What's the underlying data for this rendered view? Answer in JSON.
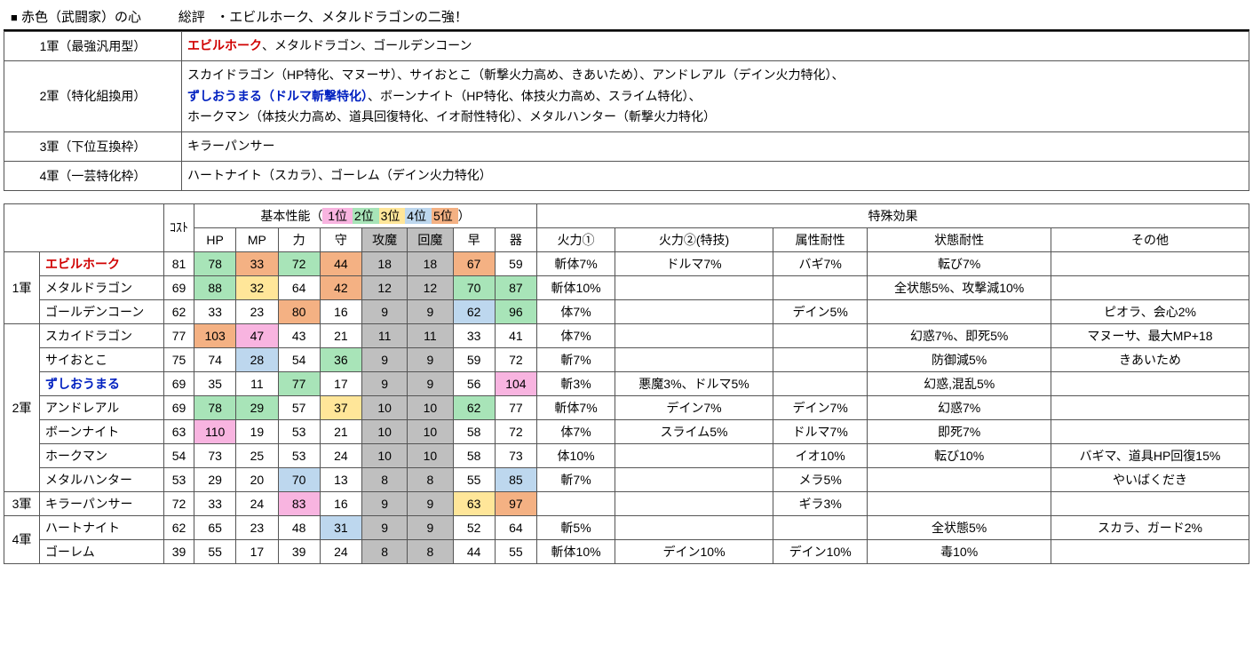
{
  "colors": {
    "rank1": "#f8b4e0",
    "rank2": "#a8e4b8",
    "rank3": "#ffe699",
    "rank4": "#bdd7ee",
    "rank5": "#f4b183",
    "grey": "#bfbfbf"
  },
  "header": {
    "square": "■",
    "title": "赤色（武闘家）の心",
    "review_label": "総評",
    "review_text": "・エビルホーク、メタルドラゴンの二強！"
  },
  "summary": [
    {
      "tier": "1軍（最強汎用型）",
      "segments": [
        {
          "t": "エビルホーク",
          "c": "red-bold"
        },
        {
          "t": "、メタルドラゴン、ゴールデンコーン"
        }
      ]
    },
    {
      "tier": "2軍（特化組換用）",
      "segments": [
        {
          "t": "スカイドラゴン（HP特化、マヌーサ）、サイおとこ（斬撃火力高め、きあいため）、アンドレアル（デイン火力特化）、"
        },
        {
          "br": true
        },
        {
          "t": "ずしおうまる（ドルマ斬撃特化）",
          "c": "blue-bold"
        },
        {
          "t": "、ボーンナイト（HP特化、体技火力高め、スライム特化）、"
        },
        {
          "br": true
        },
        {
          "t": "ホークマン（体技火力高め、道具回復特化、イオ耐性特化）、メタルハンター（斬撃火力特化）"
        }
      ]
    },
    {
      "tier": "3軍（下位互換枠）",
      "segments": [
        {
          "t": "キラーパンサー"
        }
      ]
    },
    {
      "tier": "4軍（一芸特化枠）",
      "segments": [
        {
          "t": "ハートナイト（スカラ）、ゴーレム（デイン火力特化）"
        }
      ]
    }
  ],
  "data_headers": {
    "cost": "ｺｽﾄ",
    "basic_label": "基本性能（",
    "basic_close": "）",
    "ranks": [
      "1位",
      "2位",
      "3位",
      "4位",
      "5位"
    ],
    "stats": [
      "HP",
      "MP",
      "力",
      "守",
      "攻魔",
      "回魔",
      "早",
      "器"
    ],
    "effects_label": "特殊効果",
    "effects": [
      "火力①",
      "火力②(特技)",
      "属性耐性",
      "状態耐性",
      "その他"
    ]
  },
  "tiers": [
    {
      "label": "1軍",
      "rows": [
        {
          "name": "エビルホーク",
          "name_class": "red-bold",
          "cost": 81,
          "stats": [
            78,
            33,
            72,
            44,
            18,
            18,
            67,
            59
          ],
          "colors": [
            "rank2",
            "rank5",
            "rank2",
            "rank5",
            "grey",
            "grey",
            "rank5",
            ""
          ],
          "eff": [
            "斬体7%",
            "ドルマ7%",
            "バギ7%",
            "転び7%",
            ""
          ]
        },
        {
          "name": "メタルドラゴン",
          "cost": 69,
          "stats": [
            88,
            32,
            64,
            42,
            12,
            12,
            70,
            87
          ],
          "colors": [
            "rank2",
            "rank3",
            "",
            "rank5",
            "grey",
            "grey",
            "rank2",
            "rank2"
          ],
          "eff": [
            "斬体10%",
            "",
            "",
            "全状態5%、攻撃減10%",
            ""
          ]
        },
        {
          "name": "ゴールデンコーン",
          "cost": 62,
          "stats": [
            33,
            23,
            80,
            16,
            9,
            9,
            62,
            96
          ],
          "colors": [
            "",
            "",
            "rank5",
            "",
            "grey",
            "grey",
            "rank4",
            "rank2"
          ],
          "eff": [
            "体7%",
            "",
            "デイン5%",
            "",
            "ピオラ、会心2%"
          ]
        }
      ]
    },
    {
      "label": "2軍",
      "rows": [
        {
          "name": "スカイドラゴン",
          "cost": 77,
          "stats": [
            103,
            47,
            43,
            21,
            11,
            11,
            33,
            41
          ],
          "colors": [
            "rank5",
            "rank1",
            "",
            "",
            "grey",
            "grey",
            "",
            ""
          ],
          "eff": [
            "体7%",
            "",
            "",
            "幻惑7%、即死5%",
            "マヌーサ、最大MP+18"
          ]
        },
        {
          "name": "サイおとこ",
          "cost": 75,
          "stats": [
            74,
            28,
            54,
            36,
            9,
            9,
            59,
            72
          ],
          "colors": [
            "",
            "rank4",
            "",
            "rank2",
            "grey",
            "grey",
            "",
            ""
          ],
          "eff": [
            "斬7%",
            "",
            "",
            "防御減5%",
            "きあいため"
          ]
        },
        {
          "name": "ずしおうまる",
          "name_class": "blue-bold",
          "cost": 69,
          "stats": [
            35,
            11,
            77,
            17,
            9,
            9,
            56,
            104
          ],
          "colors": [
            "",
            "",
            "rank2",
            "",
            "grey",
            "grey",
            "",
            "rank1"
          ],
          "eff": [
            "斬3%",
            "悪魔3%、ドルマ5%",
            "",
            "幻惑,混乱5%",
            ""
          ]
        },
        {
          "name": "アンドレアル",
          "cost": 69,
          "stats": [
            78,
            29,
            57,
            37,
            10,
            10,
            62,
            77
          ],
          "colors": [
            "rank2",
            "rank2",
            "",
            "rank3",
            "grey",
            "grey",
            "rank2",
            ""
          ],
          "eff": [
            "斬体7%",
            "デイン7%",
            "デイン7%",
            "幻惑7%",
            ""
          ]
        },
        {
          "name": "ボーンナイト",
          "cost": 63,
          "stats": [
            110,
            19,
            53,
            21,
            10,
            10,
            58,
            72
          ],
          "colors": [
            "rank1",
            "",
            "",
            "",
            "grey",
            "grey",
            "",
            ""
          ],
          "eff": [
            "体7%",
            "スライム5%",
            "ドルマ7%",
            "即死7%",
            ""
          ]
        },
        {
          "name": "ホークマン",
          "cost": 54,
          "stats": [
            73,
            25,
            53,
            24,
            10,
            10,
            58,
            73
          ],
          "colors": [
            "",
            "",
            "",
            "",
            "grey",
            "grey",
            "",
            ""
          ],
          "eff": [
            "体10%",
            "",
            "イオ10%",
            "転び10%",
            "バギマ、道具HP回復15%"
          ]
        },
        {
          "name": "メタルハンター",
          "cost": 53,
          "stats": [
            29,
            20,
            70,
            13,
            8,
            8,
            55,
            85
          ],
          "colors": [
            "",
            "",
            "rank4",
            "",
            "grey",
            "grey",
            "",
            "rank4"
          ],
          "eff": [
            "斬7%",
            "",
            "メラ5%",
            "",
            "やいばくだき"
          ]
        }
      ]
    },
    {
      "label": "3軍",
      "rows": [
        {
          "name": "キラーパンサー",
          "cost": 72,
          "stats": [
            33,
            24,
            83,
            16,
            9,
            9,
            63,
            97
          ],
          "colors": [
            "",
            "",
            "rank1",
            "",
            "grey",
            "grey",
            "rank3",
            "rank5"
          ],
          "eff": [
            "",
            "",
            "ギラ3%",
            "",
            ""
          ]
        }
      ]
    },
    {
      "label": "4軍",
      "rows": [
        {
          "name": "ハートナイト",
          "cost": 62,
          "stats": [
            65,
            23,
            48,
            31,
            9,
            9,
            52,
            64
          ],
          "colors": [
            "",
            "",
            "",
            "rank4",
            "grey",
            "grey",
            "",
            ""
          ],
          "eff": [
            "斬5%",
            "",
            "",
            "全状態5%",
            "スカラ、ガード2%"
          ]
        },
        {
          "name": "ゴーレム",
          "cost": 39,
          "stats": [
            55,
            17,
            39,
            24,
            8,
            8,
            44,
            55
          ],
          "colors": [
            "",
            "",
            "",
            "",
            "grey",
            "grey",
            "",
            ""
          ],
          "eff": [
            "斬体10%",
            "デイン10%",
            "デイン10%",
            "毒10%",
            ""
          ]
        }
      ]
    }
  ]
}
